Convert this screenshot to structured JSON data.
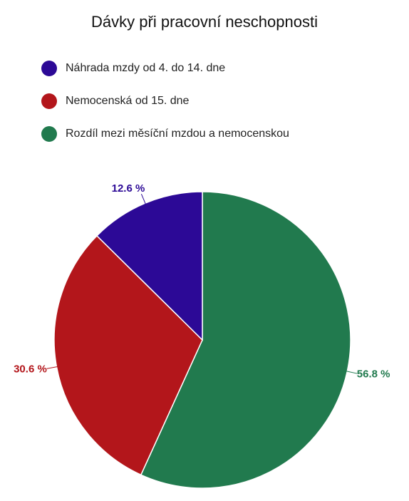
{
  "chart_data": {
    "type": "pie",
    "title": "Dávky při pracovní neschopnosti",
    "legend_position": "top-left",
    "start_angle_deg": 0,
    "direction": "clockwise",
    "slices": [
      {
        "name": "Rozdíl mezi měsíční mzdou a nemocenskou",
        "value": 56.8,
        "label": "56.8 %",
        "color": "#217a4e"
      },
      {
        "name": "Nemocenská od 15. dne",
        "value": 30.6,
        "label": "30.6 %",
        "color": "#b3161b"
      },
      {
        "name": "Náhrada mzdy od 4. do 14. dne",
        "value": 12.6,
        "label": "12.6 %",
        "color": "#2c0996"
      }
    ],
    "legend_order": [
      "Náhrada mzdy od 4. do 14. dne",
      "Nemocenská od 15. dne",
      "Rozdíl mezi měsíční mzdou a nemocenskou"
    ]
  }
}
